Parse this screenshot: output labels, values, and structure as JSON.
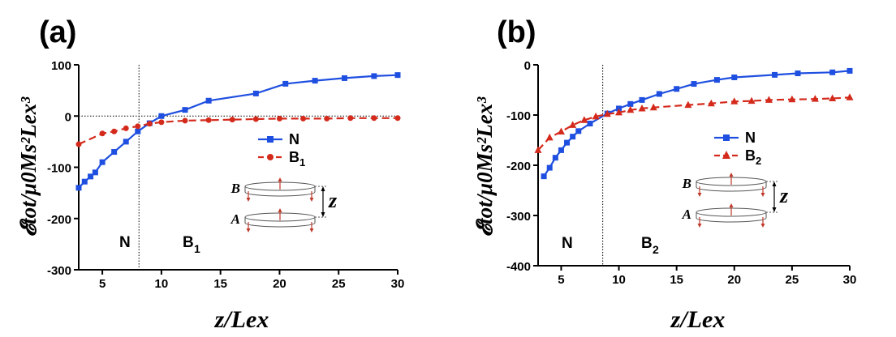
{
  "colors": {
    "blue": "#1f4fe0",
    "red": "#d42a1c",
    "disk_arrow": "#c0392b",
    "axis": "#000000"
  },
  "chart_data": [
    {
      "type": "line",
      "panel_label": "(a)",
      "ylabel": "𝓔tot/μ0Ms²Lex³",
      "xlabel": "z/Lex",
      "xlim": [
        3,
        30
      ],
      "ylim": [
        -300,
        100
      ],
      "xticks": [
        5,
        10,
        15,
        20,
        25,
        30
      ],
      "yticks": [
        -300,
        -200,
        -100,
        0,
        100
      ],
      "x_ref": 8.1,
      "y_ref": 0,
      "region_labels": {
        "left": "N",
        "right": "B",
        "right_sub": "1"
      },
      "disk_labels": {
        "top": "B",
        "bottom": "A",
        "gap": "z"
      },
      "series": [
        {
          "name": "N",
          "sub": "",
          "color": "#1f4fe0",
          "marker": "square",
          "dash": false,
          "x": [
            3,
            3.5,
            4,
            4.4,
            5,
            6,
            7,
            8,
            9,
            10,
            12,
            14,
            18,
            20.5,
            23,
            25.5,
            28,
            30
          ],
          "y": [
            -140,
            -128,
            -118,
            -110,
            -90,
            -70,
            -50,
            -30,
            -14,
            0,
            12,
            30,
            44,
            63,
            69,
            74,
            78,
            80
          ]
        },
        {
          "name": "B",
          "sub": "1",
          "color": "#d42a1c",
          "marker": "circle",
          "dash": true,
          "x": [
            3,
            5,
            6,
            7,
            8,
            9,
            10,
            12,
            14,
            16,
            18,
            20,
            22,
            24,
            26,
            28,
            30
          ],
          "y": [
            -55,
            -34,
            -30,
            -24,
            -20,
            -15,
            -12,
            -9,
            -8,
            -7,
            -6,
            -5,
            -5,
            -5,
            -4,
            -4,
            -4
          ]
        }
      ]
    },
    {
      "type": "line",
      "panel_label": "(b)",
      "ylabel": "𝓔tot/μ0Ms²Lex³",
      "xlabel": "z/Lex",
      "xlim": [
        3,
        30
      ],
      "ylim": [
        -400,
        0
      ],
      "xticks": [
        5,
        10,
        15,
        20,
        25,
        30
      ],
      "yticks": [
        -400,
        -300,
        -200,
        -100,
        0
      ],
      "x_ref": 8.6,
      "y_ref": null,
      "region_labels": {
        "left": "N",
        "right": "B",
        "right_sub": "2"
      },
      "disk_labels": {
        "top": "B",
        "bottom": "A",
        "gap": "z"
      },
      "series": [
        {
          "name": "N",
          "sub": "",
          "color": "#1f4fe0",
          "marker": "square",
          "dash": false,
          "x": [
            3.5,
            4,
            4.5,
            5,
            5.5,
            6,
            6.5,
            7.5,
            9,
            10,
            11,
            12,
            13.5,
            15,
            16.5,
            18.5,
            20,
            23.5,
            25.5,
            28.5,
            30
          ],
          "y": [
            -222,
            -205,
            -185,
            -170,
            -155,
            -143,
            -132,
            -117,
            -97,
            -87,
            -78,
            -70,
            -58,
            -48,
            -38,
            -30,
            -25,
            -20,
            -17,
            -15,
            -12
          ]
        },
        {
          "name": "B",
          "sub": "2",
          "color": "#d42a1c",
          "marker": "triangle",
          "dash": true,
          "x": [
            3,
            4,
            5,
            6,
            7,
            8,
            9,
            10,
            11,
            12,
            13,
            16,
            18,
            20,
            21.5,
            23,
            25,
            27,
            28.5,
            30
          ],
          "y": [
            -170,
            -145,
            -133,
            -120,
            -110,
            -103,
            -98,
            -95,
            -90,
            -87,
            -85,
            -80,
            -77,
            -73,
            -72,
            -70,
            -69,
            -68,
            -67,
            -65
          ]
        }
      ]
    }
  ]
}
